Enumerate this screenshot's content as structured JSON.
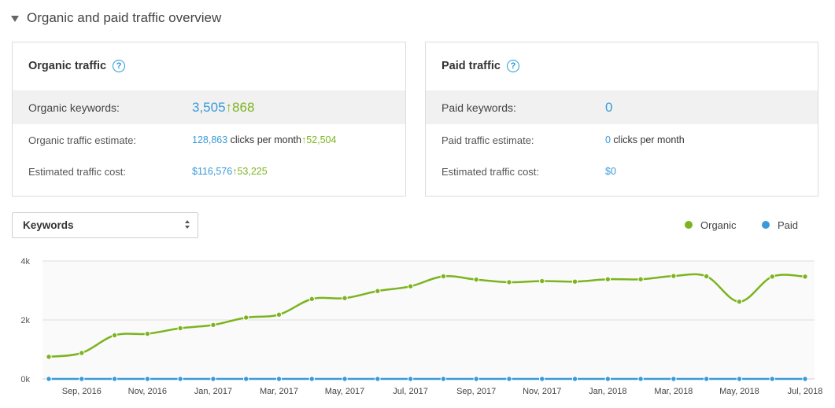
{
  "section": {
    "title": "Organic and paid traffic overview"
  },
  "organic": {
    "title": "Organic traffic",
    "keywords_label": "Organic keywords:",
    "keywords_value": "3,505",
    "keywords_change": "↑868",
    "traffic_label": "Organic traffic estimate:",
    "traffic_value": "128,863",
    "traffic_unit": " clicks per month",
    "traffic_change": "↑52,504",
    "cost_label": "Estimated traffic cost:",
    "cost_value": "$116,576",
    "cost_change": "↑53,225"
  },
  "paid": {
    "title": "Paid traffic",
    "keywords_label": "Paid keywords:",
    "keywords_value": "0",
    "traffic_label": "Paid traffic estimate:",
    "traffic_value": "0",
    "traffic_unit": " clicks per month",
    "cost_label": "Estimated traffic cost:",
    "cost_value": "$0"
  },
  "metric_select": {
    "selected": "Keywords"
  },
  "legend": [
    {
      "name": "Organic",
      "color": "#7cb41f"
    },
    {
      "name": "Paid",
      "color": "#3a9ad9"
    }
  ],
  "chart_data": {
    "type": "line",
    "x": [
      "Aug 2016",
      "Sep 2016",
      "Oct 2016",
      "Nov 2016",
      "Dec 2016",
      "Jan 2017",
      "Feb 2017",
      "Mar 2017",
      "Apr 2017",
      "May 2017",
      "Jun 2017",
      "Jul 2017",
      "Aug 2017",
      "Sep 2017",
      "Oct 2017",
      "Nov 2017",
      "Dec 2017",
      "Jan 2018",
      "Feb 2018",
      "Mar 2018",
      "Apr 2018",
      "May 2018",
      "Jun 2018",
      "Jul 2018"
    ],
    "tick_labels": [
      "Sep, 2016",
      "Nov, 2016",
      "Jan, 2017",
      "Mar, 2017",
      "May, 2017",
      "Jul, 2017",
      "Sep, 2017",
      "Nov, 2017",
      "Jan, 2018",
      "Mar, 2018",
      "May, 2018",
      "Jul, 2018"
    ],
    "y_tick_labels": [
      "4k",
      "2k",
      "0k"
    ],
    "ylim": [
      0,
      4000
    ],
    "grid": true,
    "legend_position": "top-right",
    "series": [
      {
        "name": "Organic",
        "color": "#7cb41f",
        "values": [
          750,
          880,
          1480,
          1530,
          1720,
          1830,
          2080,
          2180,
          2710,
          2740,
          2980,
          3140,
          3480,
          3370,
          3280,
          3320,
          3300,
          3380,
          3380,
          3490,
          3480,
          2620,
          3470,
          3470
        ]
      },
      {
        "name": "Paid",
        "color": "#3a9ad9",
        "values": [
          0,
          0,
          0,
          0,
          0,
          0,
          0,
          0,
          0,
          0,
          0,
          0,
          0,
          0,
          0,
          0,
          0,
          0,
          0,
          0,
          0,
          0,
          0,
          0
        ]
      }
    ]
  }
}
